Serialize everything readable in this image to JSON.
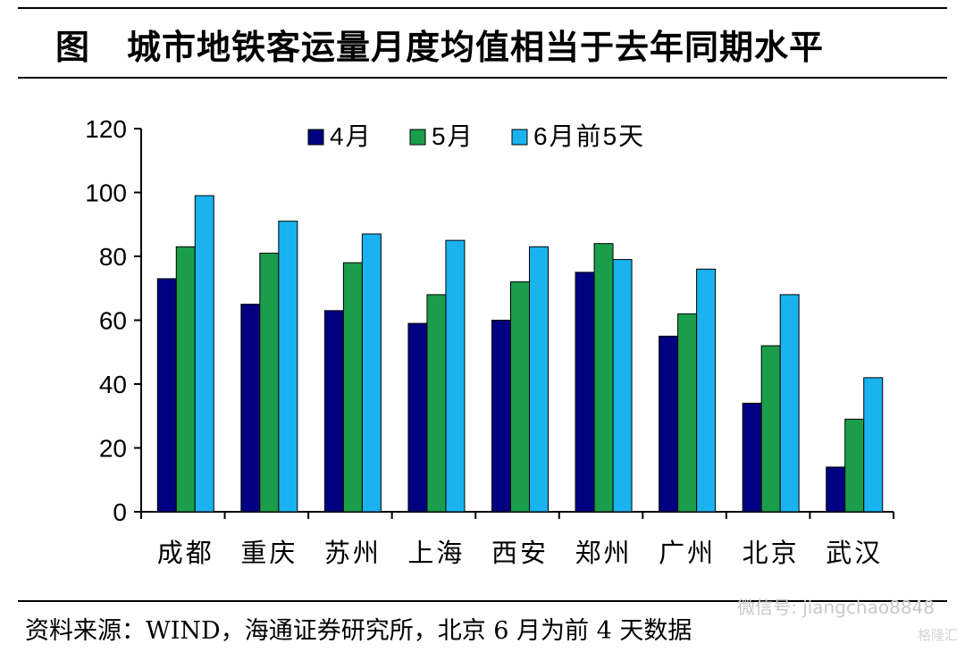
{
  "title": {
    "prefix": "图",
    "text": "城市地铁客运量月度均值相当于去年同期水平"
  },
  "chart_data": {
    "type": "bar",
    "categories": [
      "成都",
      "重庆",
      "苏州",
      "上海",
      "西安",
      "郑州",
      "广州",
      "北京",
      "武汉"
    ],
    "series": [
      {
        "name": "4月",
        "color": "#000080",
        "values": [
          73,
          65,
          63,
          59,
          60,
          75,
          55,
          34,
          14
        ]
      },
      {
        "name": "5月",
        "color": "#1a9e4b",
        "values": [
          83,
          81,
          78,
          68,
          72,
          84,
          62,
          52,
          29
        ]
      },
      {
        "name": "6月前5天",
        "color": "#19b3ef",
        "values": [
          99,
          91,
          87,
          85,
          83,
          79,
          76,
          68,
          42
        ]
      }
    ],
    "ylim": [
      0,
      120
    ],
    "yticks": [
      "0",
      "20",
      "40",
      "60",
      "80",
      "100",
      "120"
    ],
    "legend_position": "top",
    "grid": false
  },
  "source_note": "资料来源：WIND，海通证券研究所，北京 6 月为前 4 天数据",
  "watermark": {
    "main": "微信号: jiangchao8848",
    "corner": "格隆汇"
  }
}
